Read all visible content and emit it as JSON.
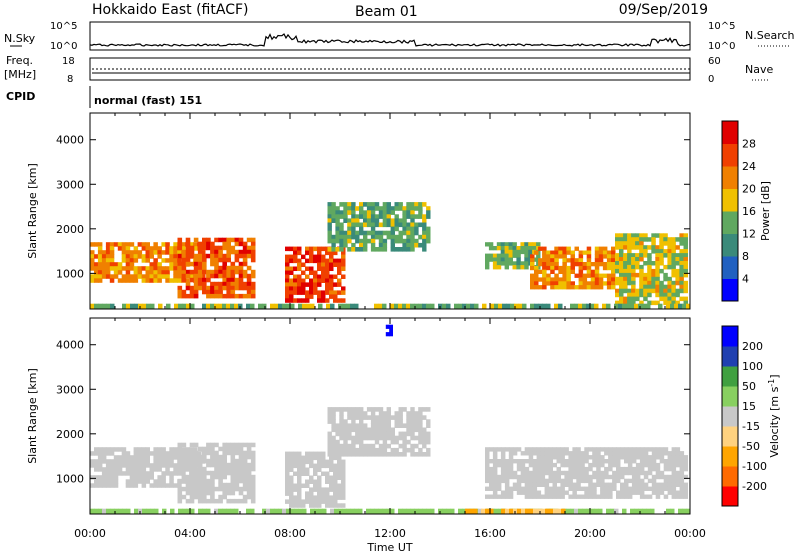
{
  "header": {
    "station": "Hokkaido East (fitACF)",
    "beam": "Beam 01",
    "date": "09/Sep/2019"
  },
  "nsky_panel": {
    "left_label": "N.Sky",
    "right_label": "N.Search",
    "left_ticks": [
      "10^5",
      "10^0"
    ],
    "right_ticks": [
      "10^5",
      "10^0"
    ]
  },
  "freq_panel": {
    "left_label_1": "Freq.",
    "left_label_2": "[MHz]",
    "left_ticks": [
      "18",
      "8"
    ],
    "right_label": "Nave",
    "right_ticks": [
      "60",
      "0"
    ]
  },
  "cpid_panel": {
    "label": "CPID",
    "mode": "normal (fast) 151"
  },
  "colors": {
    "power_scale": [
      "#0000ff",
      "#2060c0",
      "#3a8a7a",
      "#60a860",
      "#f0c000",
      "#f08000",
      "#f04000",
      "#e00000"
    ],
    "velocity_scale": [
      "#ff0000",
      "#ff6a00",
      "#ffa500",
      "#ffd27f",
      "#c8c8c8",
      "#88d060",
      "#40a040",
      "#2040b0",
      "#0000ff"
    ]
  },
  "chart_data": [
    {
      "type": "heatmap",
      "title": "",
      "xlabel": "Time UT",
      "ylabel": "Slant Range [km]",
      "x_ticks": [
        "00:00",
        "04:00",
        "08:00",
        "12:00",
        "16:00",
        "20:00",
        "00:00"
      ],
      "y_ticks": [
        1000,
        2000,
        3000,
        4000
      ],
      "ylim": [
        200,
        4600
      ],
      "colorbar": {
        "label": "Power [dB]",
        "ticks": [
          4,
          8,
          12,
          16,
          20,
          24,
          28
        ],
        "range": [
          0,
          32
        ]
      },
      "regions": [
        {
          "t0": 0.0,
          "t1": 4.6,
          "r0": 800,
          "r1": 1700,
          "level": 22
        },
        {
          "t0": 3.5,
          "t1": 6.6,
          "r0": 450,
          "r1": 1800,
          "level": 25
        },
        {
          "t0": 7.8,
          "t1": 10.2,
          "r0": 350,
          "r1": 1600,
          "level": 27
        },
        {
          "t0": 9.5,
          "t1": 13.6,
          "r0": 1500,
          "r1": 2600,
          "level": 13
        },
        {
          "t0": 15.8,
          "t1": 18.0,
          "r0": 1100,
          "r1": 1700,
          "level": 14
        },
        {
          "t0": 17.6,
          "t1": 21.0,
          "r0": 650,
          "r1": 1600,
          "level": 22
        },
        {
          "t0": 21.0,
          "t1": 23.9,
          "r0": 300,
          "r1": 1900,
          "level": 17
        },
        {
          "t0": 0.0,
          "t1": 24.0,
          "r0": 200,
          "r1": 320,
          "level": 14
        }
      ]
    },
    {
      "type": "heatmap",
      "title": "",
      "xlabel": "Time UT",
      "ylabel": "Slant Range [km]",
      "x_ticks": [
        "00:00",
        "04:00",
        "08:00",
        "12:00",
        "16:00",
        "20:00",
        "00:00"
      ],
      "y_ticks": [
        1000,
        2000,
        3000,
        4000
      ],
      "ylim": [
        200,
        4600
      ],
      "colorbar": {
        "label": "Velocity [m s^-1]",
        "ticks": [
          200,
          100,
          50,
          15,
          -15,
          -50,
          -100,
          -200
        ],
        "range": [
          -250,
          250
        ]
      },
      "regions": [
        {
          "t0": 0.0,
          "t1": 4.6,
          "r0": 800,
          "r1": 1700,
          "level": 0
        },
        {
          "t0": 3.5,
          "t1": 6.6,
          "r0": 450,
          "r1": 1800,
          "level": 0
        },
        {
          "t0": 7.8,
          "t1": 10.2,
          "r0": 350,
          "r1": 1600,
          "level": 0
        },
        {
          "t0": 9.5,
          "t1": 13.6,
          "r0": 1500,
          "r1": 2600,
          "level": 0
        },
        {
          "t0": 15.8,
          "t1": 23.9,
          "r0": 550,
          "r1": 1700,
          "level": 0
        },
        {
          "t0": 11.7,
          "t1": 12.1,
          "r0": 4200,
          "r1": 4450,
          "level": 220
        },
        {
          "t0": 0.0,
          "t1": 24.0,
          "r0": 200,
          "r1": 320,
          "level": 25
        },
        {
          "t0": 15.0,
          "t1": 19.0,
          "r0": 200,
          "r1": 320,
          "level": -50
        }
      ]
    }
  ]
}
